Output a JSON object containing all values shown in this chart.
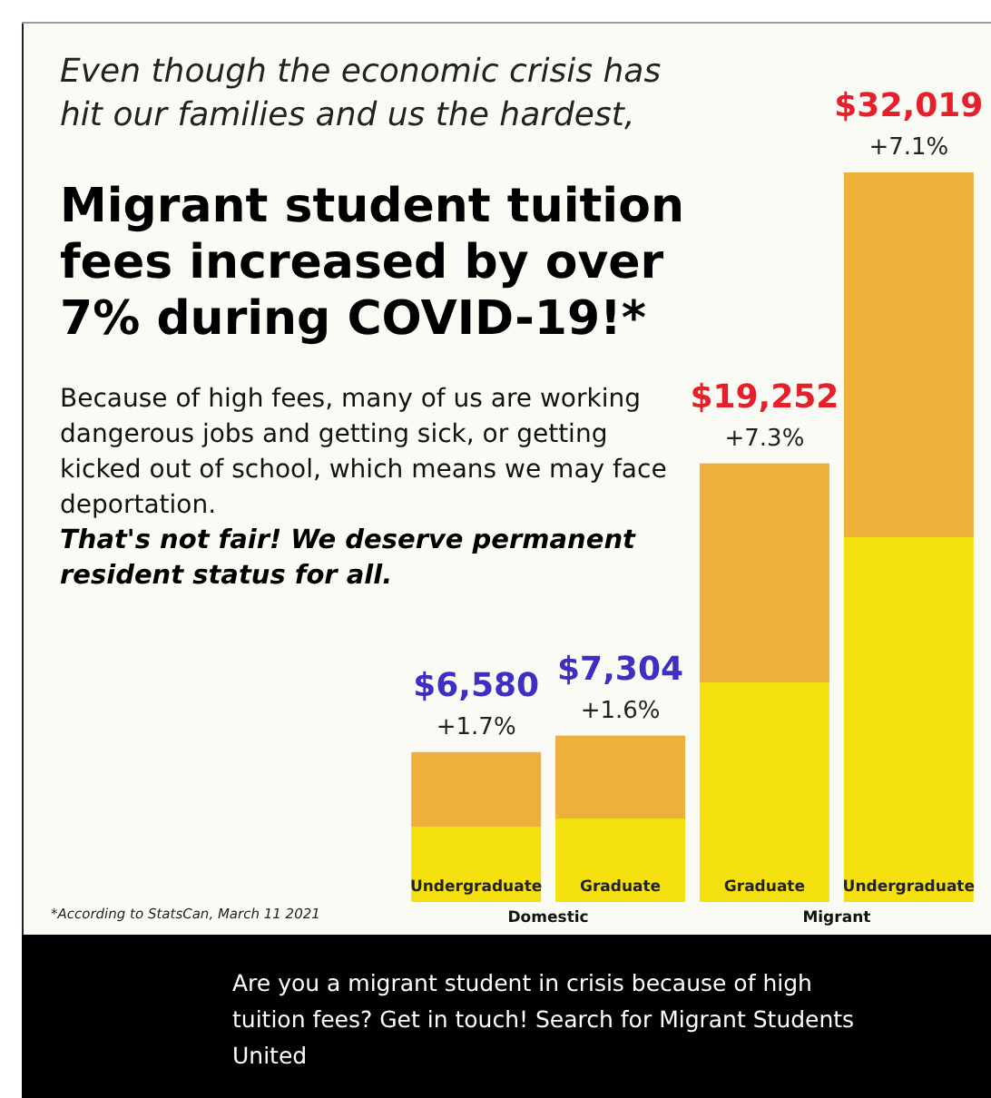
{
  "chart_data": {
    "type": "bar",
    "title": "Migrant student tuition fees increased by over 7% during COVID-19!*",
    "subtitle": "Even though the economic crisis has hit our families and us the hardest,",
    "categories": [
      "Undergraduate",
      "Graduate",
      "Graduate",
      "Undergraduate"
    ],
    "series": [
      {
        "color": "#edb03a",
        "values": [
          6580,
          7304,
          19252,
          32019
        ],
        "value_labels": [
          "$6,580",
          "$7,304",
          "$19,252",
          "$32,019"
        ]
      }
    ],
    "annotations": [
      "+1.7%",
      "+1.6%",
      "+7.3%",
      "+7.1%",
      "Because of high fees, many of us are working dangerous jobs and getting sick, or getting kicked out of school, which means we may face deportation.",
      "That's not fair! We deserve permanent resident status for all.",
      "Domestic",
      "Migrant",
      "*According to StatsCan, March 11 2021",
      "Are you a migrant student in crisis because of high tuition fees? Get in touch! Search for Migrant Students United"
    ]
  }
}
